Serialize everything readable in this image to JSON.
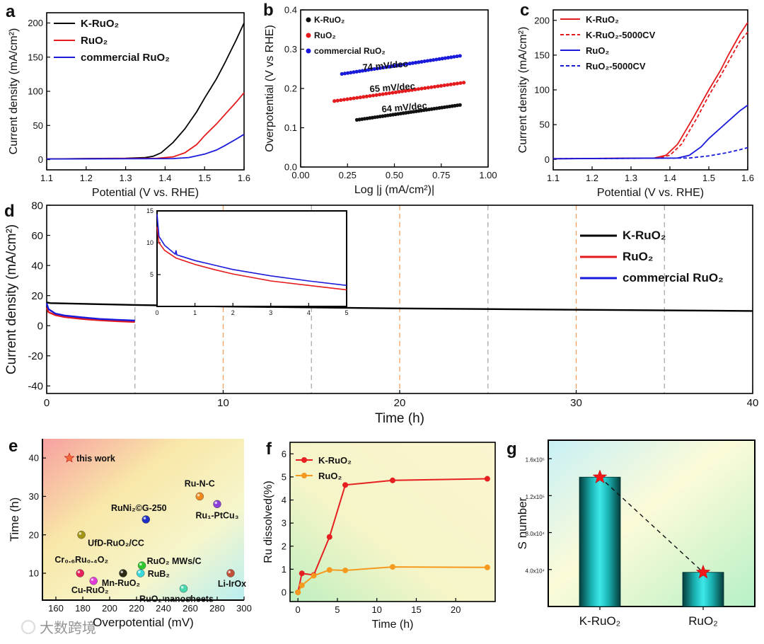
{
  "watermark": "大数跨境",
  "panel_letters": [
    "a",
    "b",
    "c",
    "d",
    "e",
    "f",
    "g"
  ],
  "chart_data": [
    {
      "id": "a",
      "type": "line",
      "xlabel": "Potential (V vs. RHE)",
      "ylabel": "Current density (mA/cm²)",
      "xlim": [
        1.1,
        1.6
      ],
      "ylim": [
        -15,
        215
      ],
      "xticks": [
        1.1,
        1.2,
        1.3,
        1.4,
        1.5,
        1.6
      ],
      "yticks": [
        0,
        50,
        100,
        150,
        200
      ],
      "legend": "top-left",
      "series": [
        {
          "name": "K-RuO₂",
          "color": "#000000",
          "x": [
            1.1,
            1.3,
            1.35,
            1.37,
            1.39,
            1.42,
            1.45,
            1.48,
            1.5,
            1.53,
            1.55,
            1.58,
            1.6
          ],
          "y": [
            1,
            2,
            3,
            5,
            10,
            25,
            45,
            70,
            90,
            118,
            140,
            175,
            200
          ]
        },
        {
          "name": "RuO₂",
          "color": "#e41a1c",
          "x": [
            1.1,
            1.38,
            1.42,
            1.45,
            1.48,
            1.5,
            1.53,
            1.55,
            1.58,
            1.6
          ],
          "y": [
            1,
            2,
            4,
            10,
            22,
            35,
            52,
            65,
            84,
            98
          ]
        },
        {
          "name": "commercial RuO₂",
          "color": "#1a1adb",
          "x": [
            1.1,
            1.42,
            1.46,
            1.5,
            1.53,
            1.55,
            1.58,
            1.6
          ],
          "y": [
            1,
            1.5,
            3,
            8,
            14,
            20,
            30,
            37
          ]
        }
      ]
    },
    {
      "id": "b",
      "type": "scatter",
      "xlabel": "Log |j (mA/cm²)|",
      "ylabel": "Overpotential (V vs RHE)",
      "xlim": [
        0,
        1
      ],
      "ylim": [
        0,
        0.4
      ],
      "xticks": [
        0,
        0.25,
        0.5,
        0.75,
        1
      ],
      "xticklabels": [
        "0.00",
        "0.25",
        "0.50",
        "0.75",
        "1.00"
      ],
      "yticks": [
        0,
        0.1,
        0.2,
        0.3,
        0.4
      ],
      "yticklabels": [
        "0.0",
        "0.1",
        "0.2",
        "0.3",
        "0.4"
      ],
      "legend": "top-left",
      "series": [
        {
          "name": "K-RuO₂",
          "color": "#111111",
          "x0": 0.3,
          "x1": 0.85,
          "y0": 0.12,
          "y1": 0.158,
          "slope_label": "64 mV/dec"
        },
        {
          "name": "RuO₂",
          "color": "#e41a1c",
          "x0": 0.18,
          "x1": 0.87,
          "y0": 0.168,
          "y1": 0.215,
          "slope_label": "65 mV/dec"
        },
        {
          "name": "commercial RuO₂",
          "color": "#1a1adb",
          "x0": 0.22,
          "x1": 0.85,
          "y0": 0.237,
          "y1": 0.283,
          "slope_label": "74 mV/dec"
        }
      ]
    },
    {
      "id": "c",
      "type": "line",
      "xlabel": "Potential (V vs. RHE)",
      "ylabel": "Current density (mA/cm²)",
      "xlim": [
        1.1,
        1.6
      ],
      "ylim": [
        -15,
        215
      ],
      "xticks": [
        1.1,
        1.2,
        1.3,
        1.4,
        1.5,
        1.6
      ],
      "yticks": [
        0,
        50,
        100,
        150,
        200
      ],
      "legend": "top-left",
      "series": [
        {
          "name": "K-RuO₂",
          "color": "#e41a1c",
          "dash": false,
          "x": [
            1.1,
            1.36,
            1.39,
            1.42,
            1.46,
            1.5,
            1.53,
            1.55,
            1.58,
            1.6
          ],
          "y": [
            1,
            2,
            6,
            22,
            60,
            100,
            128,
            150,
            180,
            197
          ]
        },
        {
          "name": "K-RuO₂-5000CV",
          "color": "#e41a1c",
          "dash": true,
          "x": [
            1.1,
            1.37,
            1.4,
            1.43,
            1.47,
            1.5,
            1.53,
            1.55,
            1.58,
            1.6
          ],
          "y": [
            1,
            2,
            6,
            22,
            60,
            92,
            120,
            140,
            170,
            183
          ]
        },
        {
          "name": "RuO₂",
          "color": "#1a1adb",
          "dash": false,
          "x": [
            1.1,
            1.42,
            1.45,
            1.48,
            1.5,
            1.53,
            1.55,
            1.58,
            1.6
          ],
          "y": [
            1,
            2,
            6,
            18,
            30,
            45,
            55,
            70,
            78
          ]
        },
        {
          "name": "RuO₂-5000CV",
          "color": "#1a1adb",
          "dash": true,
          "x": [
            1.1,
            1.45,
            1.5,
            1.53,
            1.55,
            1.58,
            1.6
          ],
          "y": [
            1,
            2,
            5,
            8,
            10,
            14,
            17
          ]
        }
      ]
    },
    {
      "id": "d",
      "type": "line",
      "xlabel": "Time (h)",
      "ylabel": "Current density (mA/cm²)",
      "xlim": [
        0,
        40
      ],
      "ylim": [
        -45,
        80
      ],
      "xticks": [
        0,
        10,
        20,
        30,
        40
      ],
      "yticks": [
        -40,
        -20,
        0,
        20,
        40,
        60,
        80
      ],
      "legend": "right",
      "gray_dashed_x": [
        5,
        15,
        25,
        35
      ],
      "orange_dashed_x": [
        10,
        20,
        30
      ],
      "series": [
        {
          "name": "K-RuO₂",
          "color": "#000000",
          "x": [
            0,
            0.2,
            5,
            10,
            20,
            30,
            40
          ],
          "y": [
            15.5,
            15,
            13.8,
            12.8,
            11.5,
            10.6,
            9.8
          ]
        },
        {
          "name": "RuO₂",
          "color": "#e41a1c",
          "x": [
            0,
            0.1,
            0.5,
            1,
            2,
            3,
            4,
            5
          ],
          "y": [
            12,
            9,
            7,
            5.8,
            4.5,
            3.6,
            3,
            2.5
          ]
        },
        {
          "name": "commercial RuO₂",
          "color": "#1a1adb",
          "x": [
            0,
            0.1,
            0.5,
            1,
            2,
            3,
            4,
            5
          ],
          "y": [
            15,
            11,
            8,
            6.8,
            5.5,
            4.5,
            3.9,
            3.4
          ]
        }
      ],
      "inset": {
        "xlim": [
          0,
          5
        ],
        "ylim": [
          0,
          15
        ],
        "xticks": [
          0,
          1,
          2,
          3,
          4,
          5
        ],
        "yticks": [
          5,
          10,
          15
        ],
        "series": [
          {
            "name": "RuO₂",
            "color": "#e41a1c",
            "x": [
              0,
              0.05,
              0.2,
              0.5,
              1,
              1.5,
              2,
              3,
              4,
              5
            ],
            "y": [
              12.5,
              10,
              8.8,
              7.6,
              6.6,
              5.8,
              5.1,
              4,
              3.3,
              2.6
            ]
          },
          {
            "name": "commercial RuO₂",
            "color": "#1a1adb",
            "x": [
              0,
              0.05,
              0.2,
              0.48,
              0.5,
              0.52,
              1,
              1.5,
              2,
              3,
              4,
              5
            ],
            "y": [
              14.5,
              11,
              9.6,
              8.2,
              8.8,
              8.1,
              7.2,
              6.5,
              5.8,
              4.8,
              4,
              3.3
            ]
          }
        ]
      }
    },
    {
      "id": "e",
      "type": "scatter",
      "xlabel": "Overpotential (mV)",
      "ylabel": "Time (h)",
      "xlim": [
        150,
        300
      ],
      "ylim": [
        3,
        45
      ],
      "xticks": [
        160,
        180,
        200,
        220,
        240,
        260,
        280,
        300
      ],
      "yticks": [
        10,
        20,
        30,
        40
      ],
      "points": [
        {
          "label": "this work",
          "x": 170,
          "y": 40,
          "color": "#f26b3a",
          "marker": "star"
        },
        {
          "label": "Ru-N-C",
          "x": 267,
          "y": 30,
          "color": "#f08a1c"
        },
        {
          "label": "Ru₁-PtCu₃",
          "x": 280,
          "y": 28,
          "color": "#8a3fd6"
        },
        {
          "label": "RuNi₂©G-250",
          "x": 227,
          "y": 24,
          "color": "#1f2fc2"
        },
        {
          "label": "UfD-RuO₂/CC",
          "x": 179,
          "y": 20,
          "color": "#a39414"
        },
        {
          "label": "Cr₀.₆Ru₀.₄O₂",
          "x": 178,
          "y": 10,
          "color": "#e8225a"
        },
        {
          "label": "Cu-RuO₂",
          "x": 188,
          "y": 8,
          "color": "#e03ad8"
        },
        {
          "label": "Mn-RuO₂",
          "x": 210,
          "y": 10,
          "color": "#2b2b14"
        },
        {
          "label": "RuO₂ MWs/C",
          "x": 224,
          "y": 12,
          "color": "#2ec82e"
        },
        {
          "label": "RuB₂",
          "x": 223,
          "y": 10,
          "color": "#3ad8d8"
        },
        {
          "label": "RuO₂ nanosheets",
          "x": 255,
          "y": 6,
          "color": "#4ad8b0"
        },
        {
          "label": "Li-IrOx",
          "x": 290,
          "y": 10,
          "color": "#c0503a"
        }
      ]
    },
    {
      "id": "f",
      "type": "line",
      "xlabel": "Time (h)",
      "ylabel": "Ru dissolved(%)",
      "xlim": [
        -1,
        25
      ],
      "ylim": [
        -0.4,
        6.5
      ],
      "xticks": [
        0,
        5,
        10,
        15,
        20
      ],
      "yticks": [
        0,
        1,
        2,
        3,
        4,
        5,
        6
      ],
      "legend": "top-left",
      "series": [
        {
          "name": "K-RuO₂",
          "color": "#e62020",
          "x": [
            0,
            0.5,
            2,
            4,
            6,
            12,
            24
          ],
          "y": [
            0,
            0.82,
            0.75,
            2.4,
            4.65,
            4.85,
            4.92
          ]
        },
        {
          "name": "RuO₂",
          "color": "#f59a1e",
          "x": [
            0,
            0.5,
            2,
            4,
            6,
            12,
            24
          ],
          "y": [
            0,
            0.3,
            0.72,
            0.97,
            0.95,
            1.1,
            1.08
          ]
        }
      ]
    },
    {
      "id": "g",
      "type": "bar",
      "ylabel": "S number",
      "categories": [
        "K-RuO₂",
        "RuO₂"
      ],
      "values": [
        140000,
        37000
      ],
      "ylim": [
        0,
        180000
      ],
      "yticks": [
        40000,
        80000,
        120000,
        160000
      ],
      "yticklabels": [
        "4.0x10⁴",
        "8.0x10⁴",
        "1.2x10⁵",
        "1.6x10⁵"
      ]
    }
  ]
}
